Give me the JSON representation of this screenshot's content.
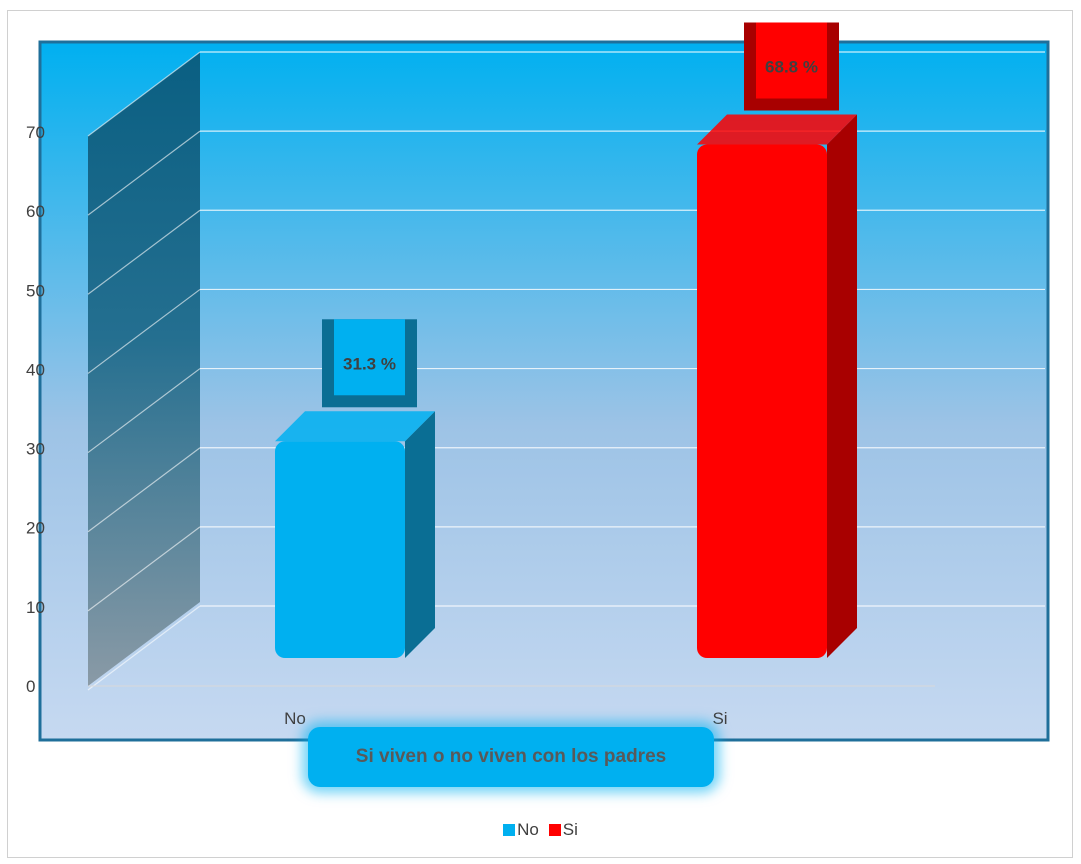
{
  "chart_data": {
    "type": "bar",
    "categories": [
      "No",
      "Si"
    ],
    "values": [
      31.3,
      68.8
    ],
    "data_labels": [
      "31.3 %",
      "68.8 %"
    ],
    "ylim": [
      0,
      70
    ],
    "yticks": [
      "0",
      "10",
      "20",
      "30",
      "40",
      "50",
      "60",
      "70"
    ],
    "xlabel": "Si viven o no viven con los padres",
    "ylabel": "",
    "title": "",
    "grid": true,
    "legend_position": "bottom",
    "legend": [
      "No",
      "Si"
    ],
    "colors": {
      "No": "#00b0f0",
      "Si": "#ff0000",
      "background_top": "#00b0f0",
      "background_bottom": "#c6d9f1"
    }
  }
}
